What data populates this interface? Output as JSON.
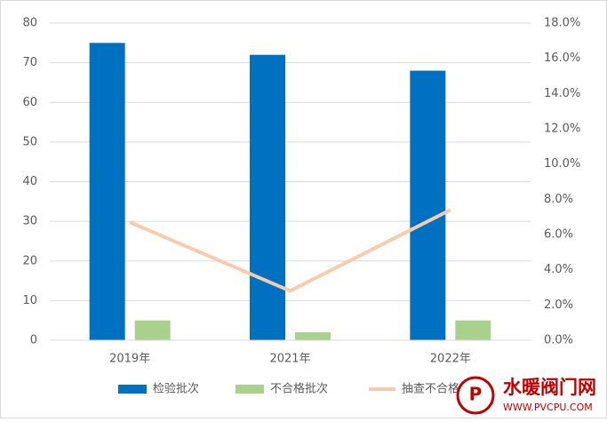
{
  "chart_data": {
    "type": "bar_line",
    "categories": [
      "2019年",
      "2021年",
      "2022年"
    ],
    "series": [
      {
        "name": "检验批次",
        "type": "bar",
        "color": "#0070c0",
        "values": [
          75,
          72,
          68
        ]
      },
      {
        "name": "不合格批次",
        "type": "bar",
        "color": "#a9d18e",
        "values": [
          5,
          2,
          5
        ]
      },
      {
        "name": "抽查不合格率",
        "type": "line",
        "axis": "y2",
        "color": "#f8cbad",
        "values": [
          6.7,
          2.8,
          7.4
        ]
      }
    ],
    "ylim": [
      0,
      80
    ],
    "yticks": [
      0,
      10,
      20,
      30,
      40,
      50,
      60,
      70,
      80
    ],
    "y2lim": [
      0,
      18
    ],
    "y2ticks": [
      {
        "value": 0,
        "label": "0.0%"
      },
      {
        "value": 2,
        "label": "2.0%"
      },
      {
        "value": 4,
        "label": "4.0%"
      },
      {
        "value": 6,
        "label": "6.0%"
      },
      {
        "value": 8,
        "label": "8.0%"
      },
      {
        "value": 10,
        "label": "10.0%"
      },
      {
        "value": 12,
        "label": "12.0%"
      },
      {
        "value": 14,
        "label": "14.0%"
      },
      {
        "value": 16,
        "label": "16.0%"
      },
      {
        "value": 18,
        "label": "18.0%"
      }
    ],
    "grid": true,
    "legend": "bottom"
  },
  "watermark": {
    "title": "水暖阀门网",
    "url": "WWW.PVCPU.COM"
  }
}
